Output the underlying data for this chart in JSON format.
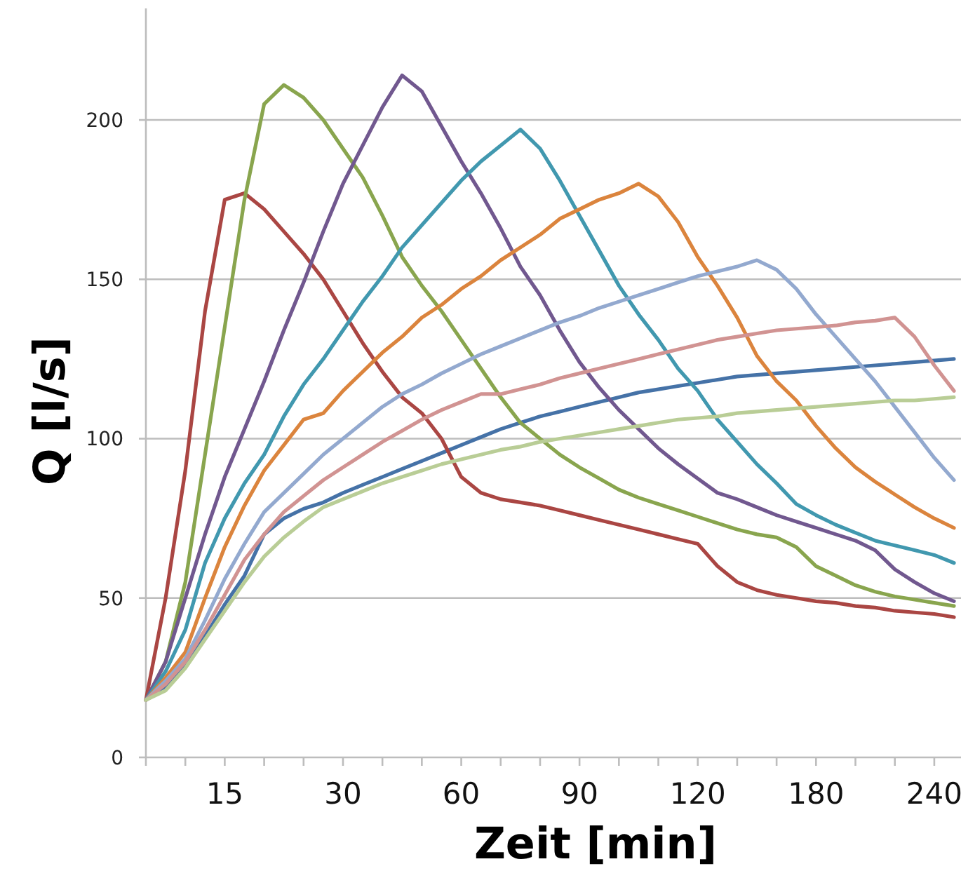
{
  "chart_data": {
    "type": "line",
    "xlabel": "Zeit [min]",
    "ylabel": "Q [l/s]",
    "categories": [
      null,
      null,
      null,
      null,
      "15",
      null,
      null,
      null,
      null,
      null,
      "30",
      null,
      null,
      null,
      null,
      null,
      "60",
      null,
      null,
      null,
      null,
      null,
      "90",
      null,
      null,
      null,
      null,
      null,
      "120",
      null,
      null,
      null,
      null,
      null,
      "180",
      null,
      null,
      null,
      null,
      null,
      "240",
      null
    ],
    "ylim": [
      0,
      235
    ],
    "yticks": [
      0,
      50,
      100,
      150,
      200
    ],
    "grid": "y",
    "marker": "none",
    "line_style": "solid",
    "series": [
      {
        "color": "#4572a7",
        "values": [
          18,
          22,
          29,
          38,
          48,
          57,
          70,
          75,
          78,
          80,
          83,
          85.5,
          88,
          90.5,
          93,
          95.5,
          98,
          100.5,
          103,
          105,
          107,
          108.5,
          110,
          111.5,
          113,
          114.5,
          115.5,
          116.5,
          117.5,
          118.5,
          119.5,
          120,
          120.5,
          121,
          121.5,
          122,
          122.5,
          123,
          123.5,
          124,
          124.5,
          125
        ]
      },
      {
        "color": "#aa4643",
        "values": [
          18,
          50,
          90,
          140,
          175,
          177,
          172,
          165,
          158,
          150,
          140,
          130,
          121,
          113,
          108,
          100,
          88,
          83,
          81,
          80,
          79,
          77.5,
          76,
          74.5,
          73,
          71.5,
          70,
          68.5,
          67,
          60,
          55,
          52.5,
          51,
          50,
          49,
          48.5,
          47.5,
          47,
          46,
          45.5,
          45,
          44
        ]
      },
      {
        "color": "#89a54e",
        "values": [
          18,
          30,
          55,
          95,
          135,
          175,
          205,
          211,
          207,
          200,
          191,
          182,
          170,
          157,
          148,
          140,
          131,
          122,
          113,
          105,
          100,
          95,
          91,
          87.5,
          84,
          81.5,
          79.5,
          77.5,
          75.5,
          73.5,
          71.5,
          70,
          69,
          66,
          60,
          57,
          54,
          52,
          50.5,
          49.5,
          48.5,
          47.5
        ]
      },
      {
        "color": "#71588f",
        "values": [
          18,
          30,
          50,
          70,
          88,
          103,
          118,
          134,
          149,
          165,
          180,
          192,
          204,
          214,
          209,
          198,
          187,
          177,
          166,
          154,
          145,
          134,
          124,
          116,
          109,
          103,
          97,
          92,
          87.5,
          83,
          81,
          78.5,
          76,
          74,
          72,
          70,
          68,
          65,
          59,
          55,
          51.5,
          49
        ]
      },
      {
        "color": "#4198af",
        "values": [
          18,
          27,
          40,
          61,
          75,
          86,
          95,
          107,
          117,
          125,
          134,
          143,
          151,
          160,
          167,
          174,
          181,
          187,
          192,
          197,
          191,
          181,
          170,
          159,
          148,
          139,
          131,
          122,
          115,
          106,
          99,
          92,
          86,
          79.5,
          76,
          73,
          70.5,
          68,
          66.5,
          65,
          63.5,
          61
        ]
      },
      {
        "color": "#db843d",
        "values": [
          18,
          25,
          33,
          50,
          66,
          79,
          90,
          98,
          106,
          108,
          115,
          121,
          127,
          132,
          138,
          142,
          147,
          151,
          156,
          160,
          164,
          169,
          172,
          175,
          177,
          180,
          176,
          168,
          157,
          148,
          138,
          126,
          118,
          112,
          104,
          97,
          91,
          86.5,
          82.5,
          78.5,
          75,
          72
        ]
      },
      {
        "color": "#93a9cf",
        "values": [
          18,
          24,
          31,
          43,
          56,
          67,
          77,
          83,
          89,
          95,
          100,
          105,
          110,
          114,
          117,
          120.5,
          123.5,
          126.5,
          129,
          131.5,
          134,
          136.5,
          138.5,
          141,
          143,
          145,
          147,
          149,
          151,
          152.5,
          154,
          156,
          153,
          147,
          139,
          132,
          125,
          118,
          110,
          102,
          94,
          87
        ]
      },
      {
        "color": "#d19392",
        "values": [
          18,
          23,
          30,
          40,
          51,
          62,
          70,
          77,
          82,
          87,
          91,
          95,
          99,
          102.5,
          106,
          109,
          111.5,
          114,
          114,
          115.5,
          117,
          119,
          120.5,
          122,
          123.5,
          125,
          126.5,
          128,
          129.5,
          131,
          132,
          133,
          134,
          134.5,
          135,
          135.5,
          136.5,
          137,
          138,
          132,
          123,
          115
        ]
      },
      {
        "color": "#b9cd96",
        "values": [
          18,
          21,
          28,
          37,
          46,
          55,
          63,
          69,
          74,
          78.5,
          81,
          83.5,
          86,
          88,
          90,
          92,
          93.5,
          95,
          96.5,
          97.5,
          99,
          100,
          101,
          102,
          103,
          104,
          105,
          106,
          106.5,
          107,
          108,
          108.5,
          109,
          109.5,
          110,
          110.5,
          111,
          111.5,
          112,
          112,
          112.5,
          113
        ]
      }
    ]
  }
}
